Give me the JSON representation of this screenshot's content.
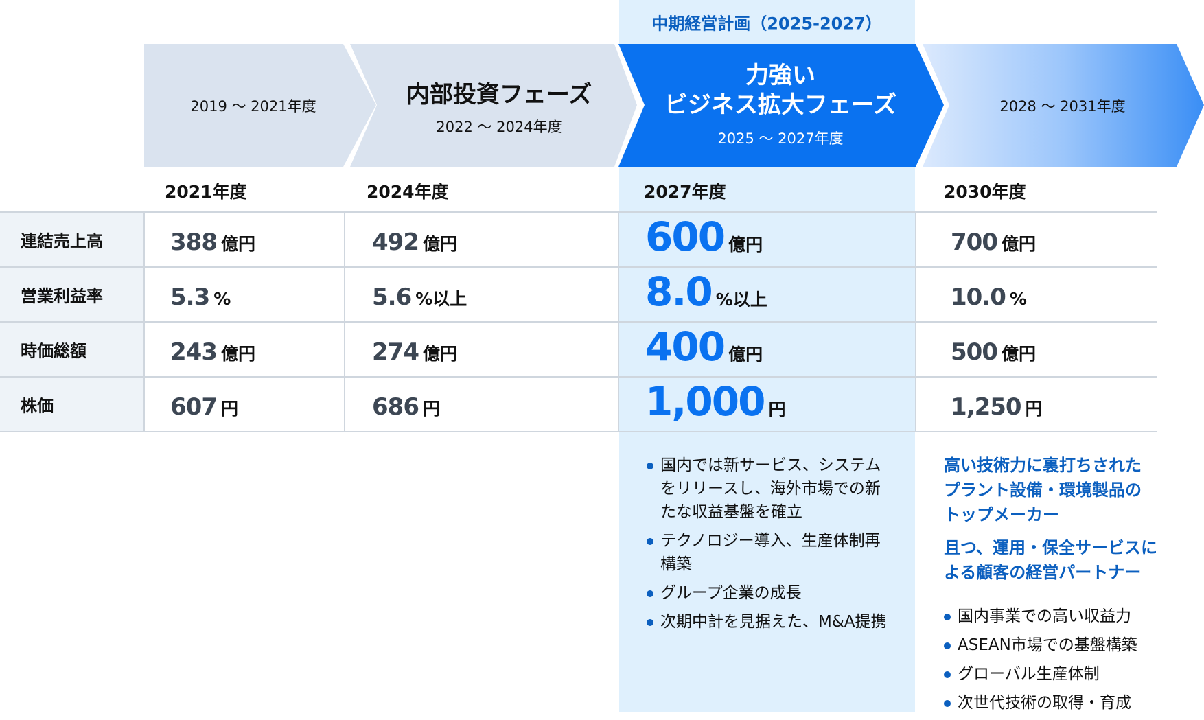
{
  "colors": {
    "accent": "#0a72f0",
    "heading_blue": "#0b5fbf",
    "highlight_bg": "#dff0fd",
    "phase_bg": "#dae3ef"
  },
  "plan_label": "中期経営計画（2025-2027）",
  "phases": [
    {
      "period": "2019 ～ 2021年度"
    },
    {
      "title": "内部投資フェーズ",
      "period": "2022 ～ 2024年度"
    },
    {
      "title_line1": "力強い",
      "title_line2": "ビジネス拡大フェーズ",
      "period": "2025 ～ 2027年度"
    },
    {
      "period": "2028 ～ 2031年度"
    }
  ],
  "years": [
    "2021年度",
    "2024年度",
    "2027年度",
    "2030年度"
  ],
  "rows": [
    {
      "label": "連結売上高",
      "values": [
        {
          "n": "388",
          "u": "億円"
        },
        {
          "n": "492",
          "u": "億円"
        },
        {
          "n": "600",
          "u": "億円"
        },
        {
          "n": "700",
          "u": "億円"
        }
      ]
    },
    {
      "label": "営業利益率",
      "values": [
        {
          "n": "5.3",
          "u": "%"
        },
        {
          "n": "5.6",
          "u": "%以上"
        },
        {
          "n": "8.0",
          "u": "%以上"
        },
        {
          "n": "10.0",
          "u": "%"
        }
      ]
    },
    {
      "label": "時価総額",
      "values": [
        {
          "n": "243",
          "u": "億円"
        },
        {
          "n": "274",
          "u": "億円"
        },
        {
          "n": "400",
          "u": "億円"
        },
        {
          "n": "500",
          "u": "億円"
        }
      ]
    },
    {
      "label": "株価",
      "values": [
        {
          "n": "607",
          "u": "円"
        },
        {
          "n": "686",
          "u": "円"
        },
        {
          "n": "1,000",
          "u": "円"
        },
        {
          "n": "1,250",
          "u": "円"
        }
      ]
    }
  ],
  "plan_bullets": [
    "国内では新サービス、システムをリリースし、海外市場での新たな収益基盤を確立",
    "テクノロジー導入、生産体制再構築",
    "グループ企業の成長",
    "次期中計を見据えた、M&A提携"
  ],
  "vision": {
    "heading1": "高い技術力に裏打ちされたプラント設備・環境製品のトップメーカー",
    "heading2": "且つ、運用・保全サービスによる顧客の経営パートナー",
    "bullets": [
      "国内事業での高い収益力",
      "ASEAN市場での基盤構築",
      "グローバル生産体制",
      "次世代技術の取得・育成"
    ]
  }
}
